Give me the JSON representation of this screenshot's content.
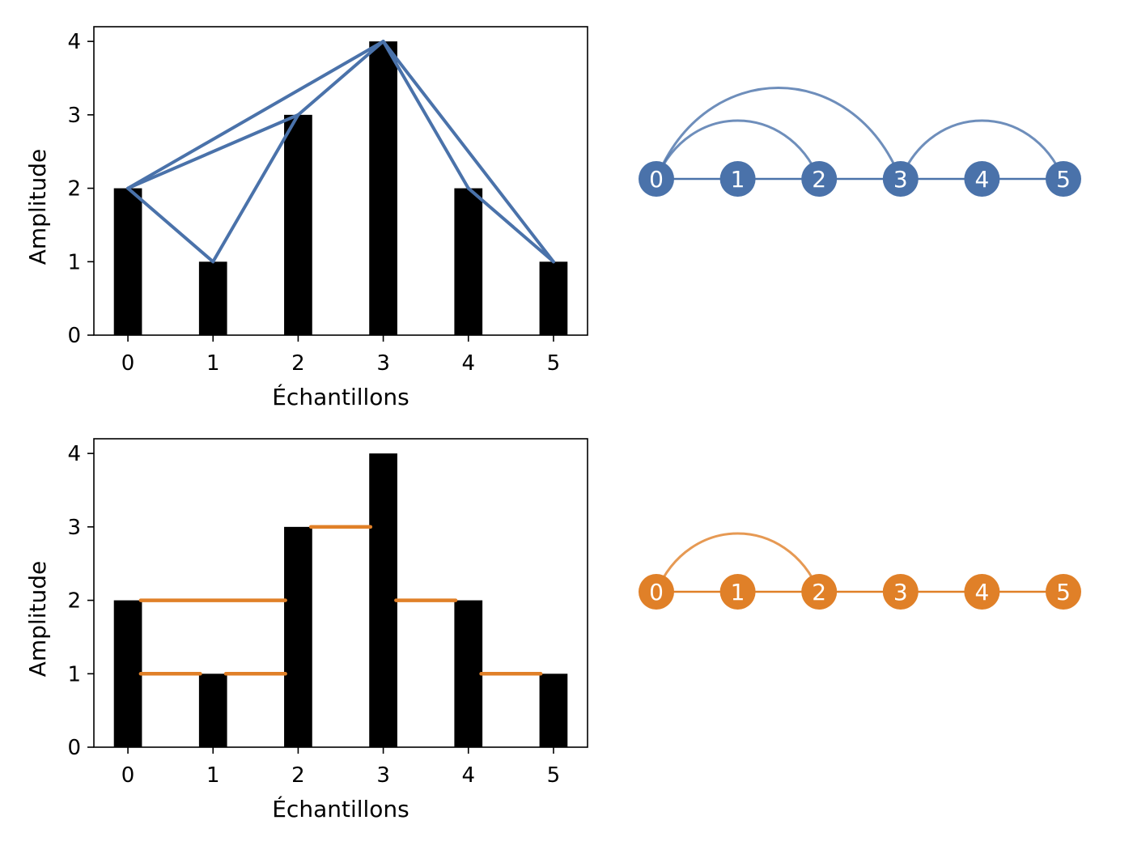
{
  "chart_data": [
    {
      "type": "bar",
      "xlabel": "Échantillons",
      "ylabel": "Amplitude",
      "categories": [
        "0",
        "1",
        "2",
        "3",
        "4",
        "5"
      ],
      "x": [
        0,
        1,
        2,
        3,
        4,
        5
      ],
      "values": [
        2,
        1,
        3,
        4,
        2,
        1
      ],
      "xticks": [
        "0",
        "1",
        "2",
        "3",
        "4",
        "5"
      ],
      "yticks": [
        "0",
        "1",
        "2",
        "3",
        "4"
      ],
      "ylim": [
        0,
        4.2
      ],
      "xlim": [
        -0.4,
        5.4
      ],
      "bar_color": "#000000",
      "overlay": {
        "type": "visibility-lines",
        "color": "#4a72aa",
        "edges": [
          [
            0,
            1
          ],
          [
            1,
            2
          ],
          [
            2,
            3
          ],
          [
            0,
            2
          ],
          [
            0,
            3
          ],
          [
            3,
            4
          ],
          [
            4,
            5
          ],
          [
            3,
            5
          ]
        ]
      }
    },
    {
      "type": "bar",
      "xlabel": "Échantillons",
      "ylabel": "Amplitude",
      "categories": [
        "0",
        "1",
        "2",
        "3",
        "4",
        "5"
      ],
      "x": [
        0,
        1,
        2,
        3,
        4,
        5
      ],
      "values": [
        2,
        1,
        3,
        4,
        2,
        1
      ],
      "xticks": [
        "0",
        "1",
        "2",
        "3",
        "4",
        "5"
      ],
      "yticks": [
        "0",
        "1",
        "2",
        "3",
        "4"
      ],
      "ylim": [
        0,
        4.2
      ],
      "xlim": [
        -0.4,
        5.4
      ],
      "bar_color": "#000000",
      "overlay": {
        "type": "horizontal-visibility-segments",
        "color": "#e08028",
        "segments": [
          {
            "x0": 0.15,
            "x1": 0.85,
            "y": 1
          },
          {
            "x0": 1.15,
            "x1": 1.85,
            "y": 1
          },
          {
            "x0": 0.15,
            "x1": 1.85,
            "y": 2
          },
          {
            "x0": 2.15,
            "x1": 2.85,
            "y": 3
          },
          {
            "x0": 3.15,
            "x1": 3.85,
            "y": 2
          },
          {
            "x0": 4.15,
            "x1": 4.85,
            "y": 1
          }
        ]
      }
    },
    {
      "type": "graph",
      "node_labels": [
        "0",
        "1",
        "2",
        "3",
        "4",
        "5"
      ],
      "node_color": "#4a72aa",
      "edges_straight": [
        [
          0,
          1
        ],
        [
          1,
          2
        ],
        [
          2,
          3
        ],
        [
          3,
          4
        ],
        [
          4,
          5
        ]
      ],
      "edges_arc": [
        [
          0,
          2
        ],
        [
          0,
          3
        ],
        [
          3,
          5
        ]
      ]
    },
    {
      "type": "graph",
      "node_labels": [
        "0",
        "1",
        "2",
        "3",
        "4",
        "5"
      ],
      "node_color": "#e08028",
      "edges_straight": [
        [
          0,
          1
        ],
        [
          1,
          2
        ],
        [
          2,
          3
        ],
        [
          3,
          4
        ],
        [
          4,
          5
        ]
      ],
      "edges_arc": [
        [
          0,
          2
        ]
      ]
    }
  ]
}
